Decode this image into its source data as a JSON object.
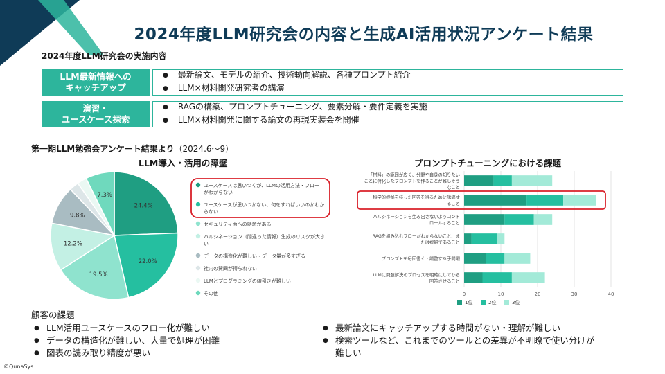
{
  "title": "2024年度LLM研究会の内容と生成AI活用状況アンケート結果",
  "section_title": "2024年度LLM研究会の実施内容",
  "rows": [
    {
      "label_line1": "LLM最新情報への",
      "label_line2": "キャッチアップ",
      "items": [
        "最新論文、モデルの紹介、技術動向解説、各種プロンプト紹介",
        "LLM×材料開発研究者の講演"
      ]
    },
    {
      "label_line1": "演習・",
      "label_line2": "ユースケース探索",
      "items": [
        "RAGの構築、プロンプトチューニング、要素分解・要件定義を実施",
        "LLM×材料開発に関する論文の再現実装会を開催"
      ]
    }
  ],
  "survey_heading": "第一期LLM勉強会アンケート結果より",
  "survey_period": "（2024.6～9）",
  "chart_data": [
    {
      "type": "pie",
      "title": "LLM導入・活用の障壁",
      "slices": [
        {
          "label": "ユースケースは思いつくが、LLMの活用方法・フローがわからない",
          "value": 24.4,
          "value_label": "24.4%",
          "color": "#1f9e82"
        },
        {
          "label": "ユースケースが思いつかない、何をすればいいのかわからない",
          "value": 22.0,
          "value_label": "22.0%",
          "color": "#25bfa0"
        },
        {
          "label": "セキュリティ面への懸念がある",
          "value": 19.5,
          "value_label": "19.5%",
          "color": "#8fe3ce"
        },
        {
          "label": "ハルシネーション（間違った情報）生成のリスクが大きい",
          "value": 12.2,
          "value_label": "12.2%",
          "color": "#c3f0e4"
        },
        {
          "label": "データの構造化が難しい・データ量が多すぎる",
          "value": 9.8,
          "value_label": "9.8%",
          "color": "#a9bcc2"
        },
        {
          "label": "社内の賛同が得られない",
          "value": 2.4,
          "value_label": "",
          "color": "#dde6e8"
        },
        {
          "label": "LLMとプログラミングの線引きが難しい",
          "value": 2.4,
          "value_label": "",
          "color": "#eaf8f3"
        },
        {
          "label": "その他",
          "value": 7.3,
          "value_label": "7.3%",
          "color": "#6fd9bd"
        }
      ],
      "highlighted_legend": [
        0,
        1
      ]
    },
    {
      "type": "bar",
      "orientation": "horizontal",
      "stacked": true,
      "title": "プロンプトチューニングにおける課題",
      "categories": [
        "「材料」の範囲が広く、分野や自身の知りたいことに特化したプロンプトを作ることが難しそうなこと",
        "科学的根拠を持った回答を得るために誘導すること",
        "ハルシネーションを生み出さないようコントロールすること",
        "RAGを組み込むフローがわからないこと、または複雑であること",
        "プロンプトを毎回書く・調整する手間暇",
        "LLMに問題解決のプロセスを明確にしてから回答させること"
      ],
      "category_lines": [
        [
          "「材料」の範囲が広く、分野や自身の知りたい",
          "ことに特化したプロンプトを作ることが難しそう",
          "なこと"
        ],
        [
          "科学的根拠を持った回答を得るために誘導す",
          "ること"
        ],
        [
          "ハルシネーションを生み出さないようコント",
          "ロールすること"
        ],
        [
          "RAGを組み込むフローがわからないこと、ま",
          "たは複雑であること"
        ],
        [
          "プロンプトを毎回書く・調整する手間暇"
        ],
        [
          "LLMに問題解決のプロセスを明確にしてから",
          "回答させること"
        ]
      ],
      "series": [
        {
          "name": "1位",
          "values": [
            8,
            17,
            11,
            2,
            6,
            5
          ],
          "color": "#1f9e82"
        },
        {
          "name": "2位",
          "values": [
            5,
            10,
            8,
            7,
            5,
            8
          ],
          "color": "#25bfa0"
        },
        {
          "name": "3位",
          "values": [
            11,
            9,
            5,
            2,
            7,
            9
          ],
          "color": "#a3ead8"
        }
      ],
      "xlim": [
        0,
        40
      ],
      "xticks": [
        0,
        10,
        20,
        30,
        40
      ],
      "highlighted_category": 1,
      "grid": true,
      "legend": "bottom-left"
    }
  ],
  "customer_issues_title": "顧客の課題",
  "customer_issues_left": [
    "LLM活用ユースケースのフロー化が難しい",
    "データの構造化が難しい、大量で処理が困難",
    "図表の読み取り精度が悪い"
  ],
  "customer_issues_right": [
    "最新論文にキャッチアップする時間がない・理解が難しい",
    "検索ツールなど、これまでのツールとの差異が不明瞭で使い分けが難しい"
  ],
  "copyright": "©QunaSys",
  "colors": {
    "accent": "#2db59c",
    "dark": "#0f3b57",
    "highlight": "#d9202a"
  }
}
